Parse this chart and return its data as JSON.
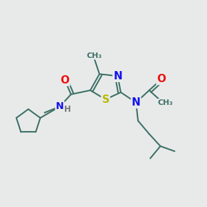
{
  "bg_color": "#e8eaea",
  "bond_color": "#3d7065",
  "bond_width": 1.5,
  "atom_colors": {
    "N": "#1010ee",
    "S": "#bbbb00",
    "O": "#ee1010",
    "H": "#777777"
  },
  "figsize": [
    3.0,
    3.0
  ],
  "dpi": 100
}
